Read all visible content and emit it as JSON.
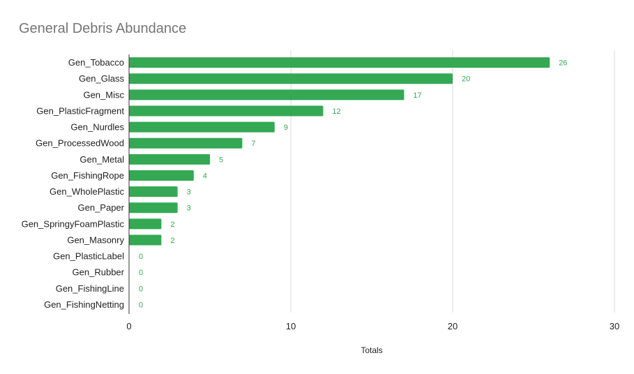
{
  "chart_data": {
    "type": "bar",
    "orientation": "horizontal",
    "title": "General Debris Abundance",
    "xlabel": "Totals",
    "ylabel": "",
    "xlim": [
      0,
      30
    ],
    "xticks": [
      0,
      10,
      20,
      30
    ],
    "grid": true,
    "legend": "none",
    "bar_color": "#34a853",
    "label_color": "#34a853",
    "categories": [
      "Gen_Tobacco",
      "Gen_Glass",
      "Gen_Misc",
      "Gen_PlasticFragment",
      "Gen_Nurdles",
      "Gen_ProcessedWood",
      "Gen_Metal",
      "Gen_FishingRope",
      "Gen_WholePlastic",
      "Gen_Paper",
      "Gen_SpringyFoamPlastic",
      "Gen_Masonry",
      "Gen_PlasticLabel",
      "Gen_Rubber",
      "Gen_FishingLine",
      "Gen_FishingNetting"
    ],
    "values": [
      26,
      20,
      17,
      12,
      9,
      7,
      5,
      4,
      3,
      3,
      2,
      2,
      0,
      0,
      0,
      0
    ]
  }
}
